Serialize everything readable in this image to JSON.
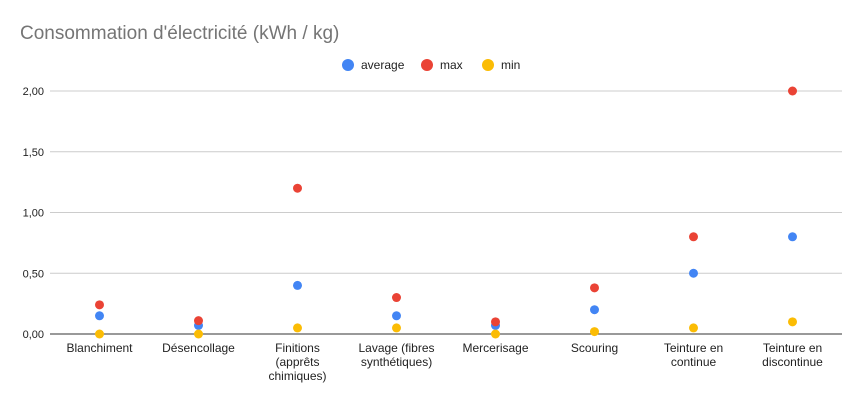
{
  "chart_data": {
    "type": "scatter",
    "title": "Consommation d'électricité (kWh / kg)",
    "xlabel": "",
    "ylabel": "",
    "categories": [
      [
        "Blanchiment"
      ],
      [
        "Désencollage"
      ],
      [
        "Finitions",
        "(apprêts",
        "chimiques)"
      ],
      [
        "Lavage (fibres",
        "synthétiques)"
      ],
      [
        "Mercerisage"
      ],
      [
        "Scouring"
      ],
      [
        "Teinture en",
        "continue"
      ],
      [
        "Teinture en",
        "discontinue"
      ]
    ],
    "series": [
      {
        "name": "average",
        "color": "#4285f4",
        "values": [
          0.15,
          0.07,
          0.4,
          0.15,
          0.07,
          0.2,
          0.5,
          0.8
        ]
      },
      {
        "name": "max",
        "color": "#ea4335",
        "values": [
          0.24,
          0.11,
          1.2,
          0.3,
          0.1,
          0.38,
          0.8,
          2.0
        ]
      },
      {
        "name": "min",
        "color": "#fbbc04",
        "values": [
          0.0,
          0.0,
          0.05,
          0.05,
          0.0,
          0.02,
          0.05,
          0.1
        ]
      }
    ],
    "ylim": [
      0,
      2.0
    ],
    "yticks": [
      "0,00",
      "0,50",
      "1,00",
      "1,50",
      "2,00"
    ],
    "grid": true,
    "legend": "top"
  }
}
